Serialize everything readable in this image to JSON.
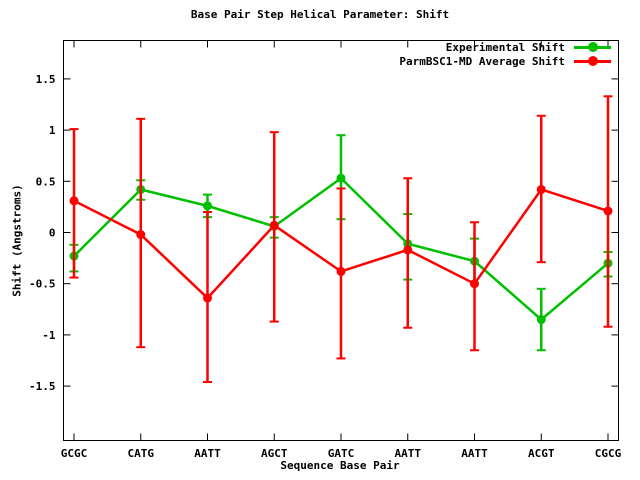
{
  "chart_data": {
    "type": "line",
    "title": "Base Pair Step Helical Parameter: Shift",
    "xlabel": "Sequence Base Pair",
    "ylabel": "Shift (Angstroms)",
    "categories": [
      "GCGC",
      "CATG",
      "AATT",
      "AGCT",
      "GATC",
      "AATT",
      "AATT",
      "ACGT",
      "CGCG"
    ],
    "ytick_values": [
      -1.5,
      -1,
      -0.5,
      0,
      0.5,
      1,
      1.5
    ],
    "ytick_labels": [
      "-1.5",
      "-1",
      "-0.5",
      "0",
      "0.5",
      "1",
      "1.5"
    ],
    "ylim": [
      -2.0,
      1.9
    ],
    "grid": false,
    "legend_position": "top-right",
    "error_bars": true,
    "axis_color": "#000000",
    "series": [
      {
        "name": "Experimental Shift",
        "color": "#00c000",
        "marker": "filled-circle",
        "values": [
          -0.23,
          0.42,
          0.26,
          0.06,
          0.53,
          -0.11,
          -0.28,
          -0.85,
          -0.3
        ],
        "err_low": [
          -0.38,
          0.32,
          0.15,
          -0.05,
          0.13,
          -0.46,
          -0.5,
          -1.15,
          -0.43
        ],
        "err_high": [
          -0.12,
          0.51,
          0.37,
          0.15,
          0.95,
          0.18,
          -0.06,
          -0.55,
          -0.19
        ]
      },
      {
        "name": "ParmBSC1-MD Average Shift",
        "color": "#ff0000",
        "marker": "filled-circle",
        "values": [
          0.31,
          -0.02,
          -0.64,
          0.07,
          -0.38,
          -0.17,
          -0.5,
          0.42,
          0.21
        ],
        "err_low": [
          -0.44,
          -1.12,
          -1.46,
          -0.87,
          -1.23,
          -0.93,
          -1.15,
          -0.29,
          -0.92
        ],
        "err_high": [
          1.01,
          1.11,
          0.2,
          0.98,
          0.43,
          0.53,
          0.1,
          1.14,
          1.33
        ]
      }
    ]
  }
}
